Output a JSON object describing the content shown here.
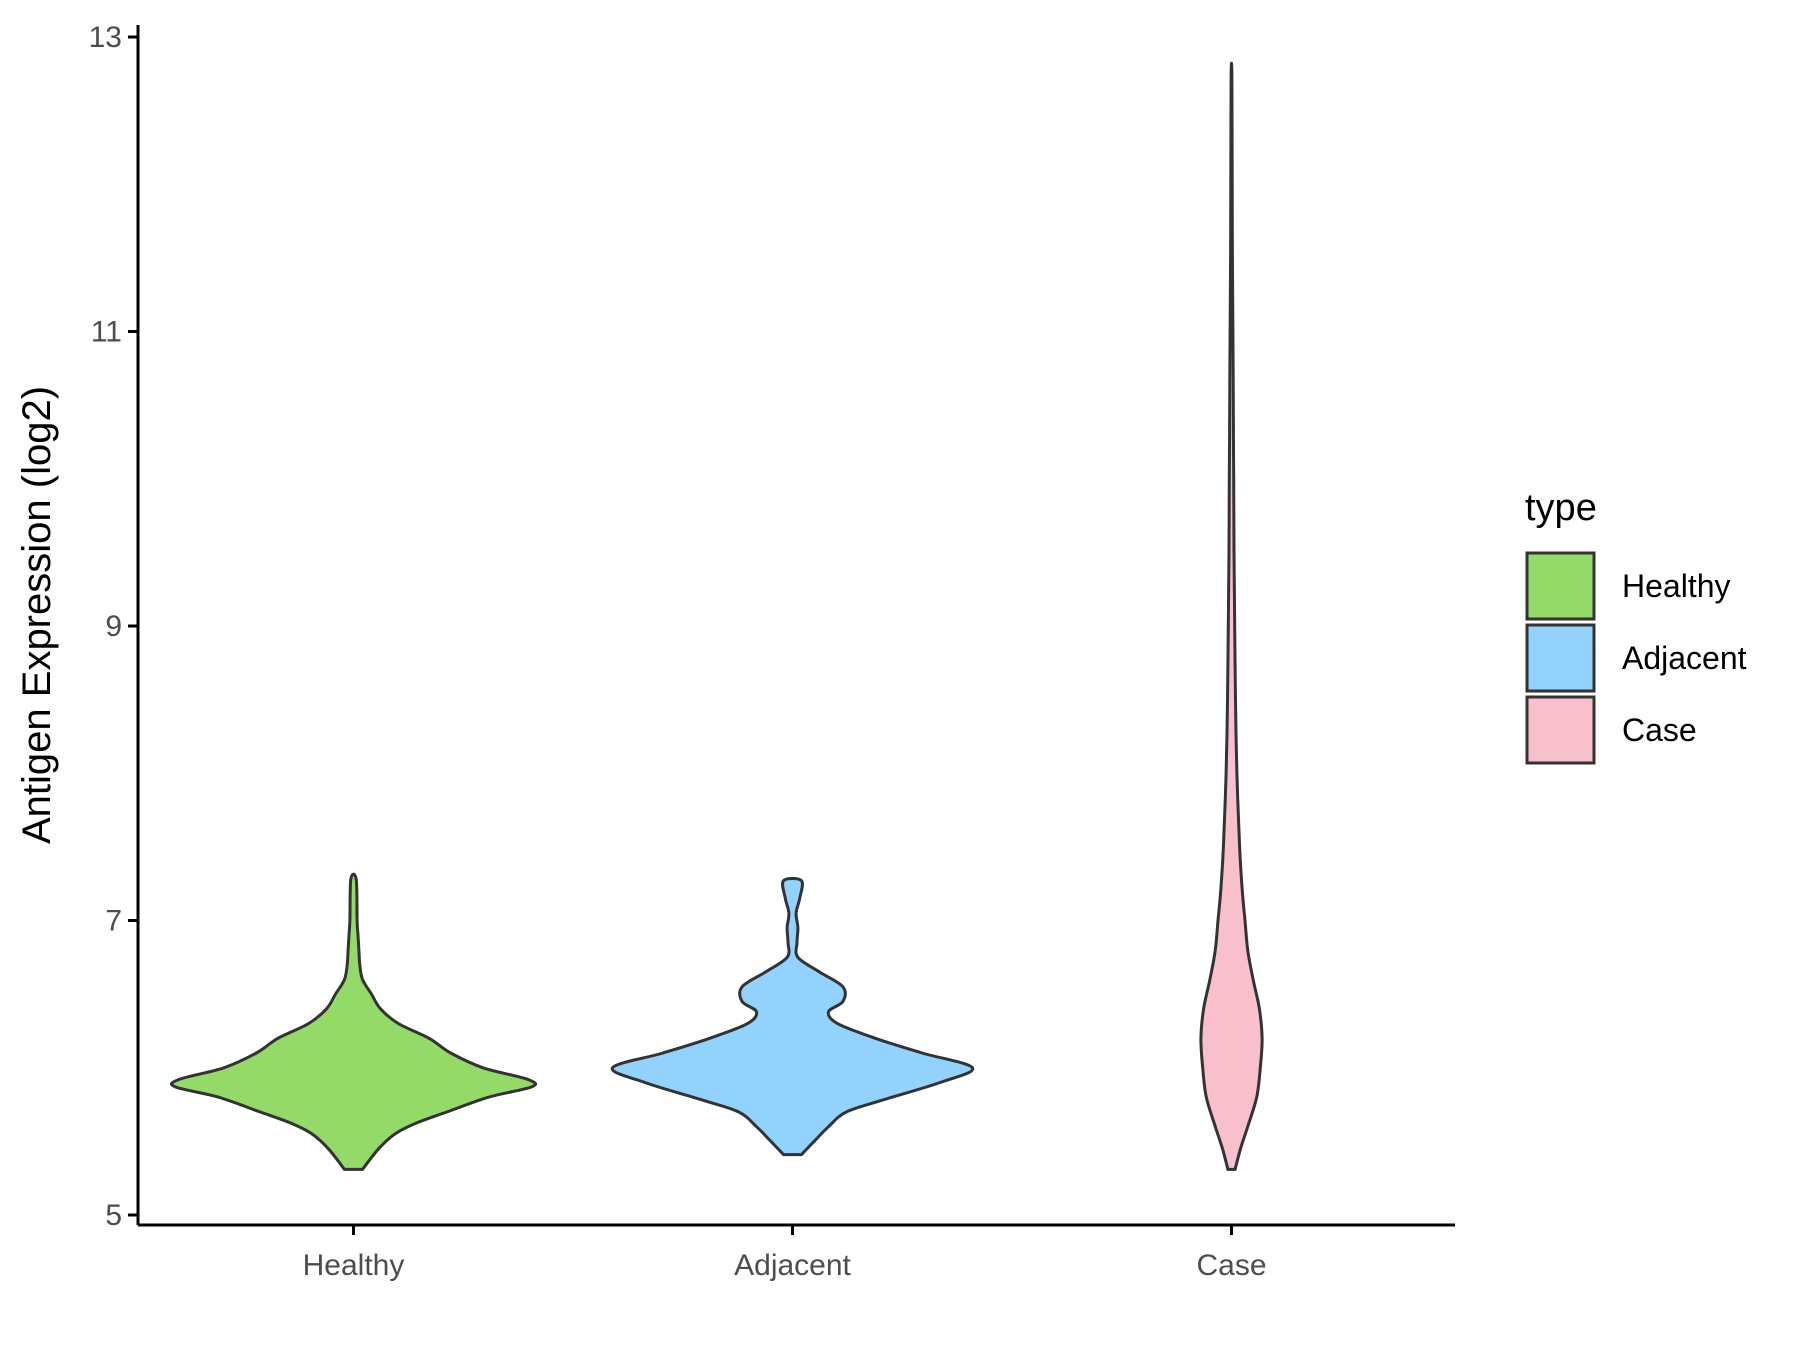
{
  "chart_data": {
    "type": "violin",
    "ylabel": "Antigen Expression (log2)",
    "xlabel": "",
    "ylim": [
      5,
      13
    ],
    "yticks": [
      5,
      7,
      9,
      11,
      13
    ],
    "categories": [
      "Healthy",
      "Adjacent",
      "Case"
    ],
    "grid": false,
    "legend": {
      "title": "type",
      "position": "right",
      "entries": [
        {
          "label": "Healthy",
          "color": "#93DA69"
        },
        {
          "label": "Adjacent",
          "color": "#93D2FC"
        },
        {
          "label": "Case",
          "color": "#F8C0CC"
        }
      ]
    },
    "series": [
      {
        "category": "Healthy",
        "color": "#93DA69",
        "profile": [
          [
            5.31,
            0.05
          ],
          [
            5.45,
            0.14
          ],
          [
            5.55,
            0.23
          ],
          [
            5.62,
            0.34
          ],
          [
            5.7,
            0.52
          ],
          [
            5.8,
            0.75
          ],
          [
            5.87,
            0.99
          ],
          [
            5.92,
            0.97
          ],
          [
            6.0,
            0.72
          ],
          [
            6.1,
            0.54
          ],
          [
            6.2,
            0.42
          ],
          [
            6.3,
            0.25
          ],
          [
            6.4,
            0.15
          ],
          [
            6.5,
            0.1
          ],
          [
            6.6,
            0.05
          ],
          [
            6.7,
            0.035
          ],
          [
            6.8,
            0.03
          ],
          [
            6.9,
            0.025
          ],
          [
            7.0,
            0.02
          ],
          [
            7.28,
            0.015
          ]
        ]
      },
      {
        "category": "Adjacent",
        "color": "#93D2FC",
        "profile": [
          [
            5.41,
            0.05
          ],
          [
            5.5,
            0.12
          ],
          [
            5.6,
            0.2
          ],
          [
            5.7,
            0.3
          ],
          [
            5.78,
            0.5
          ],
          [
            5.9,
            0.82
          ],
          [
            6.0,
            1.0
          ],
          [
            6.1,
            0.72
          ],
          [
            6.2,
            0.46
          ],
          [
            6.3,
            0.25
          ],
          [
            6.38,
            0.2
          ],
          [
            6.45,
            0.28
          ],
          [
            6.55,
            0.28
          ],
          [
            6.65,
            0.15
          ],
          [
            6.75,
            0.03
          ],
          [
            6.85,
            0.025
          ],
          [
            6.95,
            0.03
          ],
          [
            7.05,
            0.02
          ],
          [
            7.15,
            0.04
          ],
          [
            7.27,
            0.05
          ]
        ]
      },
      {
        "category": "Case",
        "color": "#F8C0CC",
        "profile": [
          [
            5.31,
            0.02
          ],
          [
            5.45,
            0.05
          ],
          [
            5.6,
            0.09
          ],
          [
            5.8,
            0.14
          ],
          [
            6.0,
            0.16
          ],
          [
            6.2,
            0.17
          ],
          [
            6.4,
            0.155
          ],
          [
            6.6,
            0.12
          ],
          [
            6.8,
            0.09
          ],
          [
            7.0,
            0.075
          ],
          [
            7.2,
            0.06
          ],
          [
            7.5,
            0.045
          ],
          [
            8.0,
            0.03
          ],
          [
            8.5,
            0.022
          ],
          [
            9.0,
            0.018
          ],
          [
            9.5,
            0.014
          ],
          [
            10.0,
            0.012
          ],
          [
            10.5,
            0.01
          ],
          [
            11.0,
            0.008
          ],
          [
            11.5,
            0.005
          ],
          [
            12.0,
            0.004
          ],
          [
            12.73,
            0.002
          ]
        ]
      }
    ]
  }
}
